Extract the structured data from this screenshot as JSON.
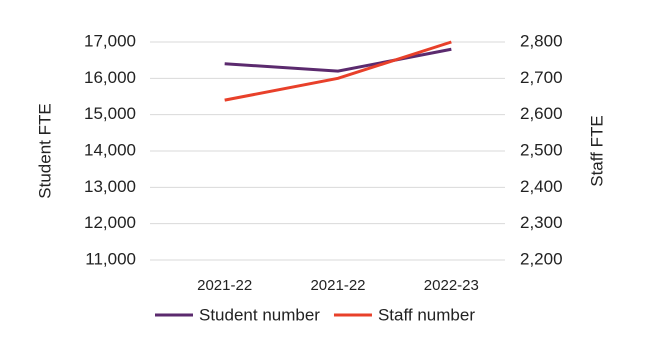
{
  "chart_data": {
    "type": "line",
    "categories": [
      "2021-22",
      "2021-22",
      "2022-23"
    ],
    "y_label": "Student FTE",
    "y2_label": "Staff FTE",
    "series": [
      {
        "name": "Student number",
        "color": "#5b2a6e",
        "values": [
          16400,
          16200,
          16800
        ]
      },
      {
        "name": "Staff number",
        "color": "#e8402a",
        "values": [
          2640,
          2700,
          2800
        ],
        "axis": "y2"
      }
    ],
    "ylim": [
      11000,
      17000
    ],
    "yticks": [
      {
        "value": 11000,
        "label": "11,000"
      },
      {
        "value": 12000,
        "label": "12,000"
      },
      {
        "value": 13000,
        "label": "13,000"
      },
      {
        "value": 14000,
        "label": "14,000"
      },
      {
        "value": 15000,
        "label": "15,000"
      },
      {
        "value": 16000,
        "label": "16,000"
      },
      {
        "value": 17000,
        "label": "17,000"
      }
    ],
    "y2lim": [
      2200,
      2800
    ],
    "y2ticks": [
      {
        "value": 2200,
        "label": "2,200"
      },
      {
        "value": 2300,
        "label": "2,300"
      },
      {
        "value": 2400,
        "label": "2,400"
      },
      {
        "value": 2500,
        "label": "2,500"
      },
      {
        "value": 2600,
        "label": "2,600"
      },
      {
        "value": 2700,
        "label": "2,700"
      },
      {
        "value": 2800,
        "label": "2,800"
      }
    ],
    "grid": true
  }
}
